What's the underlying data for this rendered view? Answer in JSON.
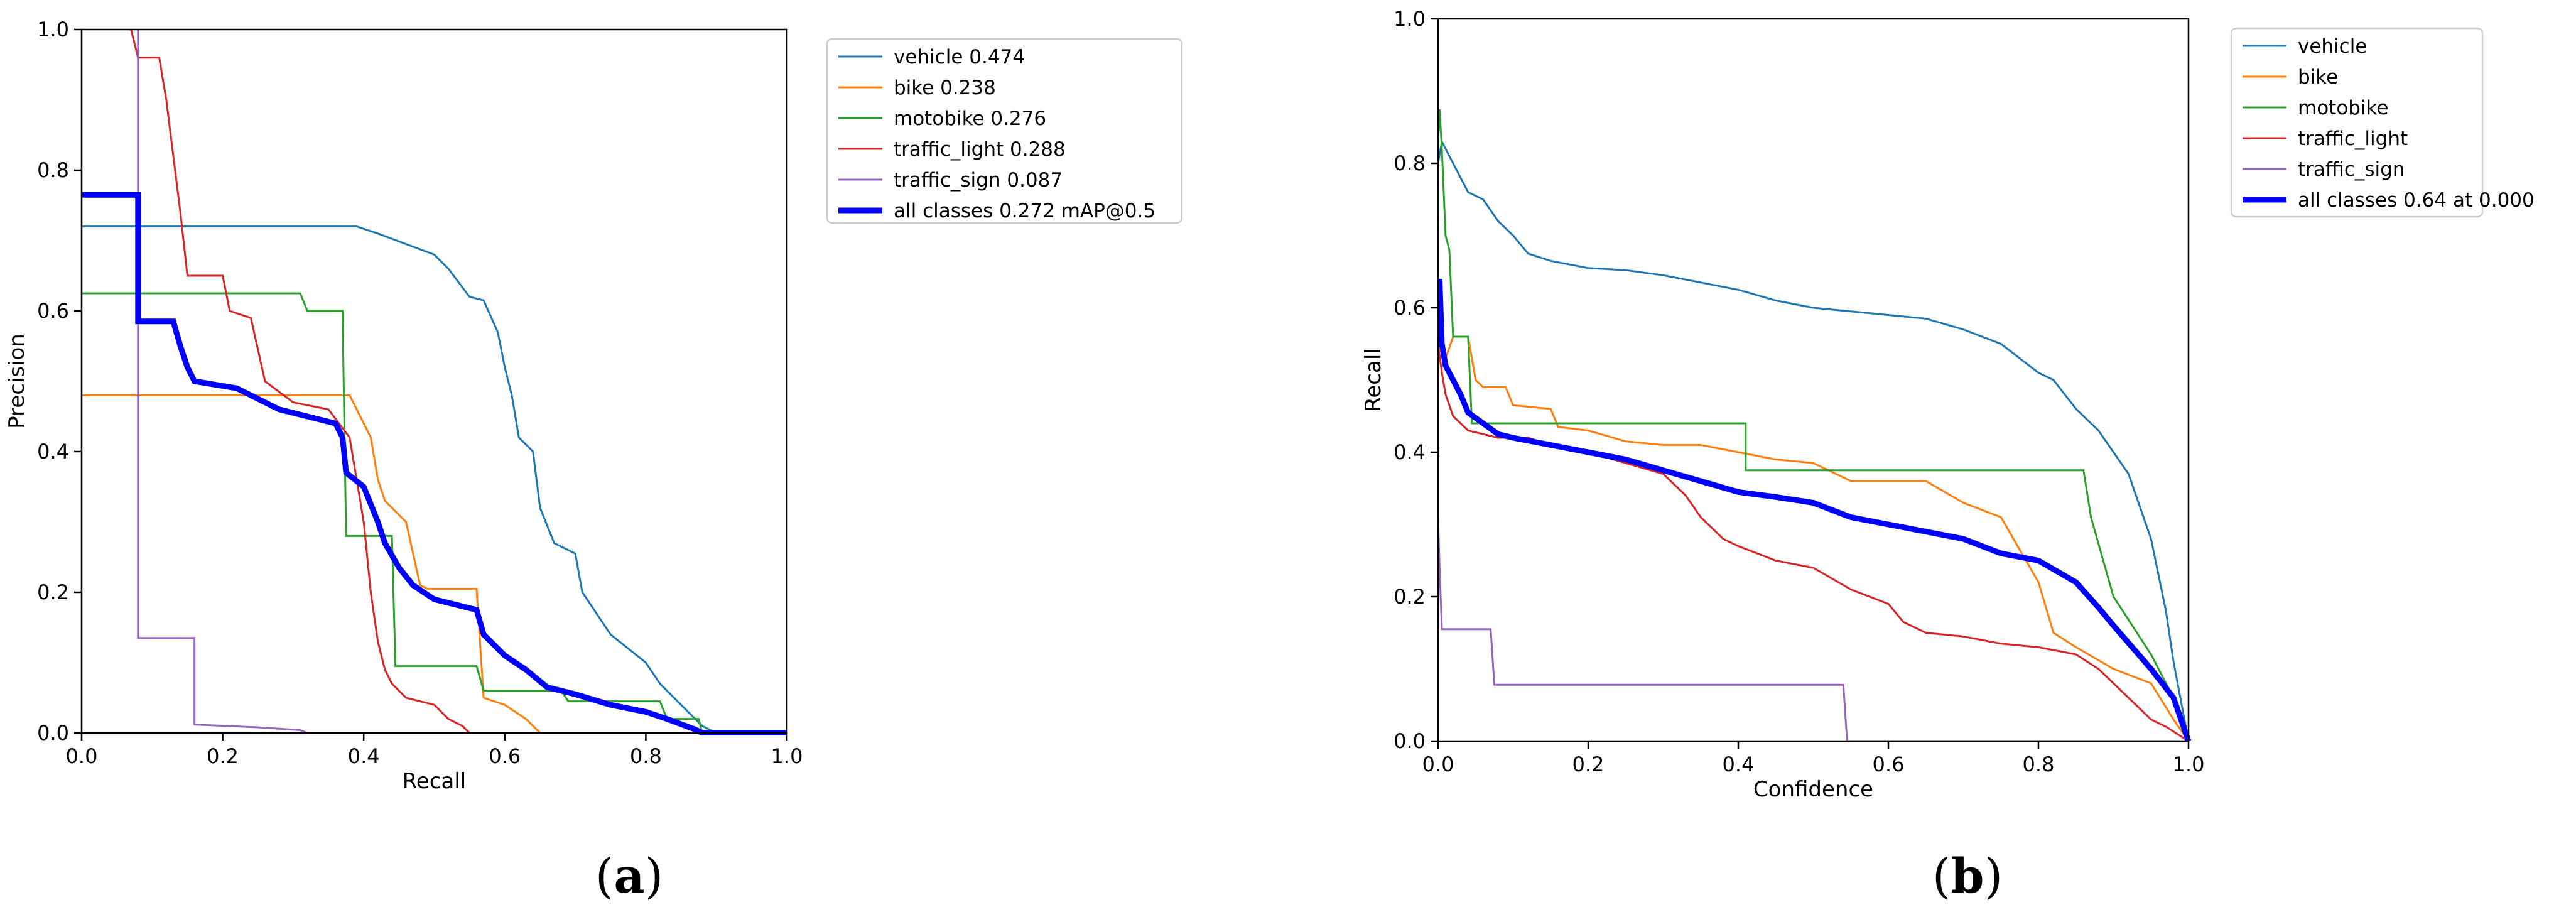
{
  "chart_data": [
    {
      "type": "line",
      "panel_label": "a",
      "xlabel": "Recall",
      "ylabel": "Precision",
      "xlim": [
        0,
        1
      ],
      "ylim": [
        0,
        1
      ],
      "xticks": [
        "0.0",
        "0.2",
        "0.4",
        "0.6",
        "0.8",
        "1.0"
      ],
      "yticks": [
        "0.0",
        "0.2",
        "0.4",
        "0.6",
        "0.8",
        "1.0"
      ],
      "legend_position": "outside-right-top",
      "series": [
        {
          "name": "vehicle",
          "label": "vehicle 0.474",
          "color": "#1f77b4",
          "width": "thin",
          "x": [
            0,
            0.39,
            0.42,
            0.46,
            0.5,
            0.52,
            0.55,
            0.57,
            0.59,
            0.6,
            0.61,
            0.62,
            0.64,
            0.65,
            0.67,
            0.7,
            0.71,
            0.75,
            0.8,
            0.82,
            0.85,
            0.87,
            0.88,
            0.9,
            1.0
          ],
          "y": [
            0.72,
            0.72,
            0.71,
            0.695,
            0.68,
            0.66,
            0.62,
            0.615,
            0.57,
            0.52,
            0.48,
            0.42,
            0.4,
            0.32,
            0.27,
            0.255,
            0.2,
            0.14,
            0.1,
            0.07,
            0.04,
            0.02,
            0.01,
            0.0,
            0.0
          ]
        },
        {
          "name": "bike",
          "label": "bike 0.238",
          "color": "#ff7f0e",
          "width": "thin",
          "x": [
            0,
            0.38,
            0.39,
            0.4,
            0.41,
            0.42,
            0.43,
            0.44,
            0.46,
            0.48,
            0.49,
            0.56,
            0.57,
            0.6,
            0.63,
            0.65,
            1.0
          ],
          "y": [
            0.48,
            0.48,
            0.46,
            0.44,
            0.42,
            0.36,
            0.33,
            0.32,
            0.3,
            0.21,
            0.205,
            0.205,
            0.05,
            0.04,
            0.02,
            0.0,
            0.0
          ]
        },
        {
          "name": "motobike",
          "label": "motobike 0.276",
          "color": "#2ca02c",
          "width": "thin",
          "x": [
            0,
            0.31,
            0.32,
            0.37,
            0.375,
            0.44,
            0.445,
            0.56,
            0.57,
            0.68,
            0.69,
            0.82,
            0.83,
            0.875,
            0.88,
            1.0
          ],
          "y": [
            0.625,
            0.625,
            0.6,
            0.6,
            0.28,
            0.28,
            0.095,
            0.095,
            0.06,
            0.06,
            0.045,
            0.045,
            0.02,
            0.02,
            0.0,
            0.0
          ]
        },
        {
          "name": "traffic_light",
          "label": "traffic_light 0.288",
          "color": "#d62728",
          "width": "thin",
          "x": [
            0.07,
            0.08,
            0.11,
            0.12,
            0.14,
            0.15,
            0.2,
            0.21,
            0.24,
            0.26,
            0.3,
            0.35,
            0.38,
            0.4,
            0.41,
            0.42,
            0.43,
            0.44,
            0.46,
            0.5,
            0.52,
            0.54,
            0.55,
            1.0
          ],
          "y": [
            1.0,
            0.96,
            0.96,
            0.9,
            0.74,
            0.65,
            0.65,
            0.6,
            0.59,
            0.5,
            0.47,
            0.46,
            0.42,
            0.3,
            0.2,
            0.13,
            0.09,
            0.07,
            0.05,
            0.04,
            0.02,
            0.01,
            0.0,
            0.0
          ]
        },
        {
          "name": "traffic_sign",
          "label": "traffic_sign 0.087",
          "color": "#9467bd",
          "width": "thin",
          "x": [
            0.08,
            0.08,
            0.16,
            0.16,
            0.25,
            0.31,
            0.32,
            1.0
          ],
          "y": [
            1.0,
            0.135,
            0.135,
            0.012,
            0.008,
            0.004,
            0.0,
            0.0
          ]
        },
        {
          "name": "all classes",
          "label": "all classes 0.272 mAP@0.5",
          "color": "#0000ff",
          "width": "thick",
          "x": [
            0,
            0.08,
            0.08,
            0.13,
            0.14,
            0.15,
            0.16,
            0.22,
            0.26,
            0.28,
            0.36,
            0.37,
            0.375,
            0.4,
            0.42,
            0.43,
            0.45,
            0.47,
            0.5,
            0.56,
            0.57,
            0.6,
            0.63,
            0.66,
            0.7,
            0.75,
            0.8,
            0.83,
            0.87,
            0.88,
            1.0
          ],
          "y": [
            0.765,
            0.765,
            0.585,
            0.585,
            0.55,
            0.52,
            0.5,
            0.49,
            0.47,
            0.46,
            0.44,
            0.42,
            0.37,
            0.35,
            0.3,
            0.27,
            0.235,
            0.21,
            0.19,
            0.175,
            0.14,
            0.11,
            0.09,
            0.065,
            0.055,
            0.04,
            0.03,
            0.02,
            0.005,
            0.0,
            0.0
          ]
        }
      ]
    },
    {
      "type": "line",
      "panel_label": "b",
      "xlabel": "Confidence",
      "ylabel": "Recall",
      "xlim": [
        0,
        1
      ],
      "ylim": [
        0,
        1
      ],
      "xticks": [
        "0.0",
        "0.2",
        "0.4",
        "0.6",
        "0.8",
        "1.0"
      ],
      "yticks": [
        "0.0",
        "0.2",
        "0.4",
        "0.6",
        "0.8",
        "1.0"
      ],
      "legend_position": "outside-right-top",
      "series": [
        {
          "name": "vehicle",
          "label": "vehicle",
          "color": "#1f77b4",
          "width": "thin",
          "x": [
            0,
            0.005,
            0.02,
            0.04,
            0.06,
            0.08,
            0.1,
            0.12,
            0.15,
            0.2,
            0.25,
            0.3,
            0.35,
            0.4,
            0.45,
            0.5,
            0.55,
            0.6,
            0.65,
            0.7,
            0.75,
            0.8,
            0.82,
            0.85,
            0.88,
            0.9,
            0.92,
            0.95,
            0.97,
            0.98,
            1.0
          ],
          "y": [
            0.8,
            0.83,
            0.8,
            0.76,
            0.75,
            0.72,
            0.7,
            0.675,
            0.665,
            0.655,
            0.652,
            0.645,
            0.635,
            0.625,
            0.61,
            0.6,
            0.595,
            0.59,
            0.585,
            0.57,
            0.55,
            0.51,
            0.5,
            0.46,
            0.43,
            0.4,
            0.37,
            0.28,
            0.18,
            0.11,
            0.0
          ]
        },
        {
          "name": "bike",
          "label": "bike",
          "color": "#ff7f0e",
          "width": "thin",
          "x": [
            0,
            0.01,
            0.02,
            0.04,
            0.05,
            0.06,
            0.09,
            0.1,
            0.15,
            0.16,
            0.2,
            0.25,
            0.3,
            0.35,
            0.4,
            0.45,
            0.5,
            0.55,
            0.65,
            0.7,
            0.75,
            0.8,
            0.82,
            0.85,
            0.9,
            0.95,
            0.98,
            1.0
          ],
          "y": [
            0.56,
            0.53,
            0.56,
            0.56,
            0.5,
            0.49,
            0.49,
            0.465,
            0.46,
            0.435,
            0.43,
            0.415,
            0.41,
            0.41,
            0.4,
            0.39,
            0.385,
            0.36,
            0.36,
            0.33,
            0.31,
            0.22,
            0.15,
            0.13,
            0.1,
            0.08,
            0.03,
            0.0
          ]
        },
        {
          "name": "motobike",
          "label": "motobike",
          "color": "#2ca02c",
          "width": "thin",
          "x": [
            0,
            0.002,
            0.005,
            0.01,
            0.015,
            0.02,
            0.025,
            0.04,
            0.045,
            0.1,
            0.41,
            0.41,
            0.86,
            0.87,
            0.9,
            0.95,
            0.98,
            1.0
          ],
          "y": [
            0.83,
            0.875,
            0.82,
            0.7,
            0.68,
            0.56,
            0.56,
            0.56,
            0.44,
            0.44,
            0.44,
            0.375,
            0.375,
            0.31,
            0.2,
            0.12,
            0.06,
            0.0
          ]
        },
        {
          "name": "traffic_light",
          "label": "traffic_light",
          "color": "#d62728",
          "width": "thin",
          "x": [
            0,
            0.005,
            0.01,
            0.02,
            0.04,
            0.08,
            0.12,
            0.15,
            0.2,
            0.25,
            0.3,
            0.33,
            0.35,
            0.38,
            0.4,
            0.45,
            0.5,
            0.55,
            0.6,
            0.62,
            0.65,
            0.7,
            0.75,
            0.8,
            0.85,
            0.88,
            0.9,
            0.93,
            0.95,
            0.97,
            1.0
          ],
          "y": [
            0.55,
            0.51,
            0.48,
            0.45,
            0.43,
            0.42,
            0.42,
            0.41,
            0.4,
            0.385,
            0.37,
            0.34,
            0.31,
            0.28,
            0.27,
            0.25,
            0.24,
            0.21,
            0.19,
            0.165,
            0.15,
            0.145,
            0.135,
            0.13,
            0.12,
            0.1,
            0.08,
            0.05,
            0.03,
            0.02,
            0.0
          ]
        },
        {
          "name": "traffic_sign",
          "label": "traffic_sign",
          "color": "#9467bd",
          "width": "thin",
          "x": [
            0,
            0.002,
            0.005,
            0.07,
            0.075,
            0.54,
            0.545,
            1.0
          ],
          "y": [
            0.31,
            0.24,
            0.155,
            0.155,
            0.078,
            0.078,
            0.0,
            0.0
          ]
        },
        {
          "name": "all classes",
          "label": "all classes 0.64 at 0.000",
          "color": "#0000ff",
          "width": "thick",
          "x": [
            0,
            0.002,
            0.005,
            0.01,
            0.02,
            0.03,
            0.04,
            0.06,
            0.08,
            0.1,
            0.15,
            0.2,
            0.25,
            0.3,
            0.35,
            0.4,
            0.45,
            0.5,
            0.55,
            0.6,
            0.65,
            0.7,
            0.75,
            0.8,
            0.85,
            0.88,
            0.9,
            0.95,
            0.98,
            1.0
          ],
          "y": [
            0.6,
            0.64,
            0.55,
            0.52,
            0.5,
            0.48,
            0.455,
            0.44,
            0.425,
            0.42,
            0.41,
            0.4,
            0.39,
            0.375,
            0.36,
            0.345,
            0.338,
            0.33,
            0.31,
            0.3,
            0.29,
            0.28,
            0.26,
            0.25,
            0.22,
            0.185,
            0.16,
            0.1,
            0.06,
            0.0
          ]
        }
      ]
    }
  ]
}
